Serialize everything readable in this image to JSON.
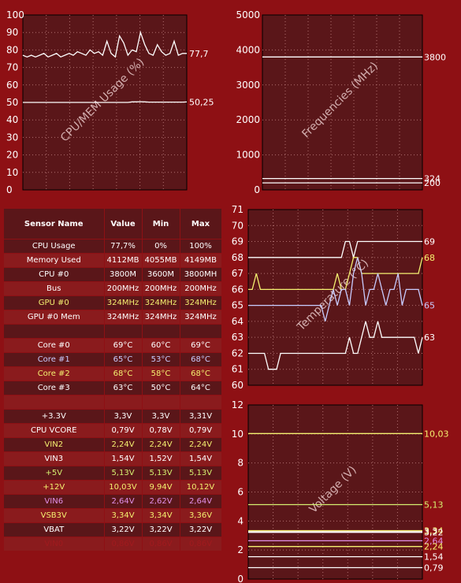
{
  "charts": [
    {
      "id": "cpu-mem-usage",
      "ylabel": "CPU/MEM Usage (%)",
      "ylim": [
        0,
        100
      ],
      "yticks": [
        0,
        10,
        20,
        30,
        40,
        50,
        60,
        70,
        80,
        90,
        100
      ],
      "series": [
        {
          "label": "77,7",
          "color": "#ffffff",
          "values": [
            77,
            76,
            77,
            76,
            77,
            78,
            76,
            77,
            78,
            76,
            77,
            78,
            77,
            79,
            78,
            77,
            80,
            78,
            79,
            77,
            85,
            78,
            76,
            88,
            84,
            77,
            80,
            79,
            90,
            83,
            78,
            77,
            83,
            79,
            77,
            78,
            85,
            77,
            78,
            78
          ]
        },
        {
          "label": "50,25",
          "color": "#ffffff",
          "values": [
            50,
            50,
            50,
            50,
            50,
            50,
            50,
            50,
            50,
            50,
            50,
            50,
            50,
            50,
            50,
            50,
            50,
            50,
            50,
            50,
            50,
            50,
            50,
            50,
            50,
            50,
            50.3,
            50.3,
            50.4,
            50.3,
            50.2,
            50.2,
            50.2,
            50.2,
            50.2,
            50.2,
            50.2,
            50.2,
            50.2,
            50.25
          ]
        }
      ]
    },
    {
      "id": "frequencies",
      "ylabel": "Frequencies (MHz)",
      "ylim": [
        0,
        5000
      ],
      "yticks": [
        0,
        1000,
        2000,
        3000,
        4000,
        5000
      ],
      "series": [
        {
          "label": "3800",
          "color": "#ffffff",
          "values": [
            3800,
            3800
          ]
        },
        {
          "label": "324",
          "color": "#ffffff",
          "values": [
            324,
            324
          ]
        },
        {
          "label": "200",
          "color": "#ffffff",
          "values": [
            200,
            200
          ]
        }
      ]
    },
    {
      "id": "temperature",
      "ylabel": "Temperature (°C)",
      "ylim": [
        60,
        71
      ],
      "yticks": [
        60,
        61,
        62,
        63,
        64,
        65,
        66,
        67,
        68,
        69,
        70,
        71
      ],
      "series": [
        {
          "label": "69",
          "color": "#ffffff",
          "values": [
            68,
            68,
            68,
            68,
            68,
            68,
            68,
            68,
            68,
            68,
            68,
            68,
            68,
            68,
            68,
            68,
            68,
            68,
            68,
            68,
            68,
            68,
            68,
            68,
            69,
            69,
            68,
            69,
            69,
            69,
            69,
            69,
            69,
            69,
            69,
            69,
            69,
            69,
            69,
            69,
            69,
            69,
            69,
            69
          ]
        },
        {
          "label": "68",
          "color": "#f4f070",
          "values": [
            66,
            66,
            67,
            66,
            66,
            66,
            66,
            66,
            66,
            66,
            66,
            66,
            66,
            66,
            66,
            66,
            66,
            66,
            66,
            66,
            66,
            66,
            67,
            66,
            66,
            67,
            68,
            68,
            67,
            67,
            67,
            67,
            67,
            67,
            67,
            67,
            67,
            67,
            67,
            67,
            67,
            67,
            67,
            68
          ]
        },
        {
          "label": "65",
          "color": "#c8ccff",
          "values": [
            65,
            65,
            65,
            65,
            65,
            65,
            65,
            65,
            65,
            65,
            65,
            65,
            65,
            65,
            65,
            65,
            65,
            65,
            65,
            64,
            65,
            66,
            65,
            66,
            66,
            65,
            67,
            68,
            67,
            65,
            66,
            66,
            67,
            66,
            65,
            66,
            66,
            67,
            65,
            66,
            66,
            66,
            66,
            65
          ]
        },
        {
          "label": "63",
          "color": "#ffffff",
          "values": [
            62,
            62,
            62,
            62,
            62,
            61,
            61,
            61,
            62,
            62,
            62,
            62,
            62,
            62,
            62,
            62,
            62,
            62,
            62,
            62,
            62,
            62,
            62,
            62,
            62,
            63,
            62,
            62,
            63,
            64,
            63,
            63,
            64,
            63,
            63,
            63,
            63,
            63,
            63,
            63,
            63,
            63,
            62,
            63
          ]
        }
      ]
    },
    {
      "id": "voltage",
      "ylabel": "Voltage (V)",
      "ylim": [
        0,
        12
      ],
      "yticks": [
        0,
        2,
        4,
        6,
        8,
        10,
        12
      ],
      "series": [
        {
          "label": "10,03",
          "color": "#f4f070",
          "values": [
            10.03,
            10.03
          ]
        },
        {
          "label": "5,13",
          "color": "#d4f070",
          "values": [
            5.13,
            5.13
          ]
        },
        {
          "label": "3,3",
          "color": "#ffffff",
          "values": [
            3.3,
            3.3
          ]
        },
        {
          "label": "3,34",
          "color": "#f4f070",
          "values": [
            3.34,
            3.34
          ]
        },
        {
          "label": "3,22",
          "color": "#ffffff",
          "values": [
            3.22,
            3.22
          ]
        },
        {
          "label": "2,64",
          "color": "#e090e8",
          "values": [
            2.64,
            2.64
          ]
        },
        {
          "label": "2,24",
          "color": "#f4f070",
          "values": [
            2.24,
            2.24
          ]
        },
        {
          "label": "1,54",
          "color": "#ffffff",
          "values": [
            1.54,
            1.54
          ]
        },
        {
          "label": "0,79",
          "color": "#ffffff",
          "values": [
            0.79,
            0.79
          ]
        }
      ]
    }
  ],
  "table": {
    "headers": [
      "Sensor Name",
      "Value",
      "Min",
      "Max"
    ],
    "rows": [
      {
        "cells": [
          "CPU Usage",
          "77,7%",
          "0%",
          "100%"
        ],
        "color": "#ffffff"
      },
      {
        "cells": [
          "Memory Used",
          "4112MB",
          "4055MB",
          "4149MB"
        ],
        "color": "#ffffff"
      },
      {
        "cells": [
          "CPU #0",
          "3800M",
          "3600M",
          "3800MH"
        ],
        "color": "#ffffff"
      },
      {
        "cells": [
          "Bus",
          "200MHz",
          "200MHz",
          "200MHz"
        ],
        "color": "#ffffff"
      },
      {
        "cells": [
          "GPU #0",
          "324MHz",
          "324MHz",
          "324MHz"
        ],
        "color": "#f4f070"
      },
      {
        "cells": [
          "GPU #0 Mem",
          "324MHz",
          "324MHz",
          "324MHz"
        ],
        "color": "#ffffff"
      },
      {
        "cells": [
          "",
          "",
          "",
          ""
        ],
        "color": "#ffffff"
      },
      {
        "cells": [
          "Core #0",
          "69°C",
          "60°C",
          "69°C"
        ],
        "color": "#ffffff"
      },
      {
        "cells": [
          "Core #1",
          "65°C",
          "53°C",
          "68°C"
        ],
        "color": "#c8ccff"
      },
      {
        "cells": [
          "Core #2",
          "68°C",
          "58°C",
          "68°C"
        ],
        "color": "#f4f070"
      },
      {
        "cells": [
          "Core #3",
          "63°C",
          "50°C",
          "64°C"
        ],
        "color": "#ffffff"
      },
      {
        "cells": [
          "",
          "",
          "",
          ""
        ],
        "color": "#ffffff"
      },
      {
        "cells": [
          "+3.3V",
          "3,3V",
          "3,3V",
          "3,31V"
        ],
        "color": "#ffffff"
      },
      {
        "cells": [
          "CPU VCORE",
          "0,79V",
          "0,78V",
          "0,79V"
        ],
        "color": "#ffffff"
      },
      {
        "cells": [
          "VIN2",
          "2,24V",
          "2,24V",
          "2,24V"
        ],
        "color": "#f4f070"
      },
      {
        "cells": [
          "VIN3",
          "1,54V",
          "1,52V",
          "1,54V"
        ],
        "color": "#ffffff"
      },
      {
        "cells": [
          "+5V",
          "5,13V",
          "5,13V",
          "5,13V"
        ],
        "color": "#d4f070"
      },
      {
        "cells": [
          "+12V",
          "10,03V",
          "9,94V",
          "10,12V"
        ],
        "color": "#f4f070"
      },
      {
        "cells": [
          "VIN6",
          "2,64V",
          "2,62V",
          "2,64V"
        ],
        "color": "#e090e8"
      },
      {
        "cells": [
          "VSB3V",
          "3,34V",
          "3,34V",
          "3,36V"
        ],
        "color": "#f4f070"
      },
      {
        "cells": [
          "VBAT",
          "3,22V",
          "3,22V",
          "3,22V"
        ],
        "color": "#ffffff"
      },
      {
        "cells": [
          "VIN0",
          "0,86V",
          "0,86V",
          "0,86V"
        ],
        "color": "#a01a1e"
      }
    ]
  },
  "colors": {
    "background": "#8e1014",
    "plot_bg": "#5a1619",
    "grid": "#b07070"
  }
}
